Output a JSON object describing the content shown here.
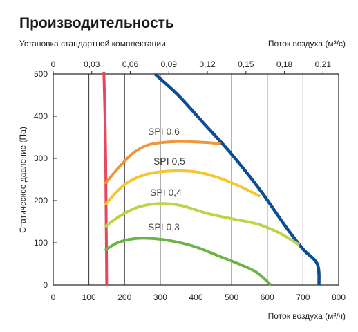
{
  "chart_data": {
    "type": "line",
    "title": "Производительность",
    "subtitle": "Установка стандартной комплектации",
    "xlabel": "Поток воздуха (м³/ч)",
    "x2label": "Поток воздуха (м³/с)",
    "ylabel": "Статическое давление (Па)",
    "xlim": [
      0,
      800
    ],
    "ylim": [
      0,
      500
    ],
    "x2lim": [
      0,
      0.2222
    ],
    "x_ticks": [
      "0",
      "100",
      "200",
      "300",
      "400",
      "500",
      "600",
      "700",
      "800"
    ],
    "x_tick_values": [
      0,
      100,
      200,
      300,
      400,
      500,
      600,
      700,
      800
    ],
    "y_ticks": [
      "0",
      "100",
      "200",
      "300",
      "400",
      "500"
    ],
    "y_tick_values": [
      0,
      100,
      200,
      300,
      400,
      500
    ],
    "x2_ticks": [
      "0",
      "0,03",
      "0,06",
      "0,09",
      "0,12",
      "0,15",
      "0,18",
      "0,21"
    ],
    "x2_tick_values": [
      0,
      0.03,
      0.06,
      0.09,
      0.12,
      0.15,
      0.18,
      0.21
    ],
    "grid": "vertical",
    "series": [
      {
        "name": "",
        "role": "min-flow-limit",
        "color": "#e8465a",
        "points": [
          [
            142,
            505
          ],
          [
            145,
            400
          ],
          [
            147,
            300
          ],
          [
            148,
            200
          ],
          [
            149,
            100
          ],
          [
            150,
            0
          ]
        ]
      },
      {
        "name": "",
        "role": "max-performance",
        "color": "#0c4d96",
        "points": [
          [
            285,
            500
          ],
          [
            350,
            450
          ],
          [
            420,
            385
          ],
          [
            500,
            310
          ],
          [
            580,
            225
          ],
          [
            650,
            140
          ],
          [
            700,
            85
          ],
          [
            740,
            50
          ],
          [
            745,
            0
          ]
        ]
      },
      {
        "name": "SPI 0,6",
        "color": "#f0953a",
        "points": [
          [
            145,
            240
          ],
          [
            180,
            275
          ],
          [
            220,
            310
          ],
          [
            260,
            330
          ],
          [
            300,
            337
          ],
          [
            360,
            340
          ],
          [
            420,
            338
          ],
          [
            470,
            335
          ]
        ]
      },
      {
        "name": "SPI 0,5",
        "color": "#f5c630",
        "points": [
          [
            145,
            190
          ],
          [
            200,
            238
          ],
          [
            260,
            262
          ],
          [
            330,
            270
          ],
          [
            400,
            268
          ],
          [
            460,
            255
          ],
          [
            520,
            235
          ],
          [
            580,
            210
          ]
        ]
      },
      {
        "name": "SPI 0,4",
        "color": "#bcd448",
        "points": [
          [
            145,
            138
          ],
          [
            190,
            165
          ],
          [
            240,
            185
          ],
          [
            300,
            193
          ],
          [
            360,
            188
          ],
          [
            430,
            170
          ],
          [
            500,
            157
          ],
          [
            570,
            145
          ],
          [
            630,
            125
          ],
          [
            690,
            95
          ]
        ]
      },
      {
        "name": "SPI 0,3",
        "color": "#6db543",
        "points": [
          [
            145,
            82
          ],
          [
            180,
            100
          ],
          [
            230,
            110
          ],
          [
            280,
            110
          ],
          [
            340,
            103
          ],
          [
            400,
            90
          ],
          [
            460,
            70
          ],
          [
            520,
            50
          ],
          [
            570,
            30
          ],
          [
            610,
            0
          ]
        ]
      }
    ]
  }
}
